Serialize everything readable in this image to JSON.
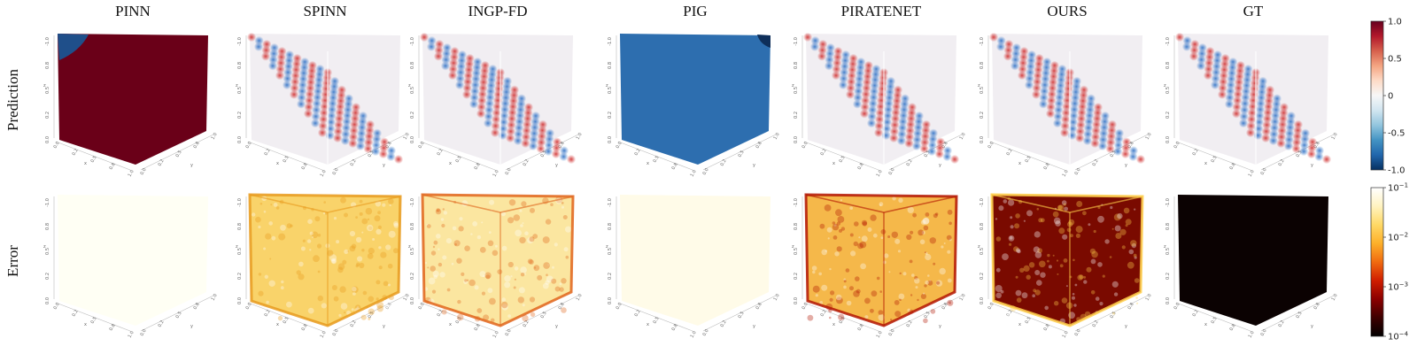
{
  "figure": {
    "columns": [
      {
        "key": "pinn",
        "title": "PINN"
      },
      {
        "key": "spinn",
        "title": "SPINN"
      },
      {
        "key": "ingp",
        "title": "INGP-FD"
      },
      {
        "key": "pig",
        "title": "PIG"
      },
      {
        "key": "pirate",
        "title": "PIRATENET"
      },
      {
        "key": "ours",
        "title": "OURS"
      },
      {
        "key": "gt",
        "title": "GT"
      }
    ],
    "rows": [
      {
        "key": "prediction",
        "label": "Prediction"
      },
      {
        "key": "error",
        "label": "Error"
      }
    ],
    "axes": {
      "z_ticks": [
        "-1.0",
        "0.8",
        "0.5",
        "0.2",
        "0.0"
      ],
      "x_ticks": [
        "0.0",
        "0.2",
        "0.5",
        "0.8",
        "1.0"
      ],
      "y_ticks": [
        "0.0",
        "0.2",
        "0.5",
        "0.8",
        "1.0"
      ],
      "z_label": "z",
      "x_label": "x",
      "y_label": "y"
    },
    "colorbars": {
      "prediction": {
        "ticks": [
          "1.0",
          "0.5",
          "0",
          "-0.5",
          "-1.0"
        ],
        "stops": [
          "#67001f",
          "#b2182b",
          "#d6604d",
          "#f4a582",
          "#fddbc7",
          "#f7f7f7",
          "#d1e5f0",
          "#92c5de",
          "#4393c3",
          "#2166ac",
          "#053061"
        ]
      },
      "error": {
        "ticks": [
          {
            "base": "10",
            "exp": "−1"
          },
          {
            "base": "10",
            "exp": "−2"
          },
          {
            "base": "10",
            "exp": "−3"
          },
          {
            "base": "10",
            "exp": "−4"
          }
        ],
        "stops": [
          "#ffffff",
          "#fff3c0",
          "#ffd966",
          "#fdb02a",
          "#f06b10",
          "#d01e00",
          "#8b0000",
          "#3d0000",
          "#000000"
        ]
      }
    },
    "cells": {
      "prediction": {
        "pinn": {
          "style": "solid",
          "fill": "#6a0018"
        },
        "spinn": {
          "style": "lattice"
        },
        "ingp": {
          "style": "lattice"
        },
        "pig": {
          "style": "solid",
          "fill": "#2d6eaf"
        },
        "pirate": {
          "style": "lattice"
        },
        "ours": {
          "style": "lattice"
        },
        "gt": {
          "style": "lattice"
        }
      },
      "error": {
        "pinn": {
          "style": "blank",
          "fill": "#fffff4"
        },
        "spinn": {
          "style": "noisy",
          "fill": "#f9d36a",
          "edge": "#e79a1c"
        },
        "ingp": {
          "style": "noisy",
          "fill": "#fbe6a0",
          "edge": "#e0641a"
        },
        "pig": {
          "style": "blank",
          "fill": "#fffbe8"
        },
        "pirate": {
          "style": "noisy",
          "fill": "#f5b84a",
          "edge": "#b31400"
        },
        "ours": {
          "style": "noisy",
          "fill": "#7a0a00",
          "edge": "#ffcf4a"
        },
        "gt": {
          "style": "solid",
          "fill": "#0b0202"
        }
      }
    }
  }
}
